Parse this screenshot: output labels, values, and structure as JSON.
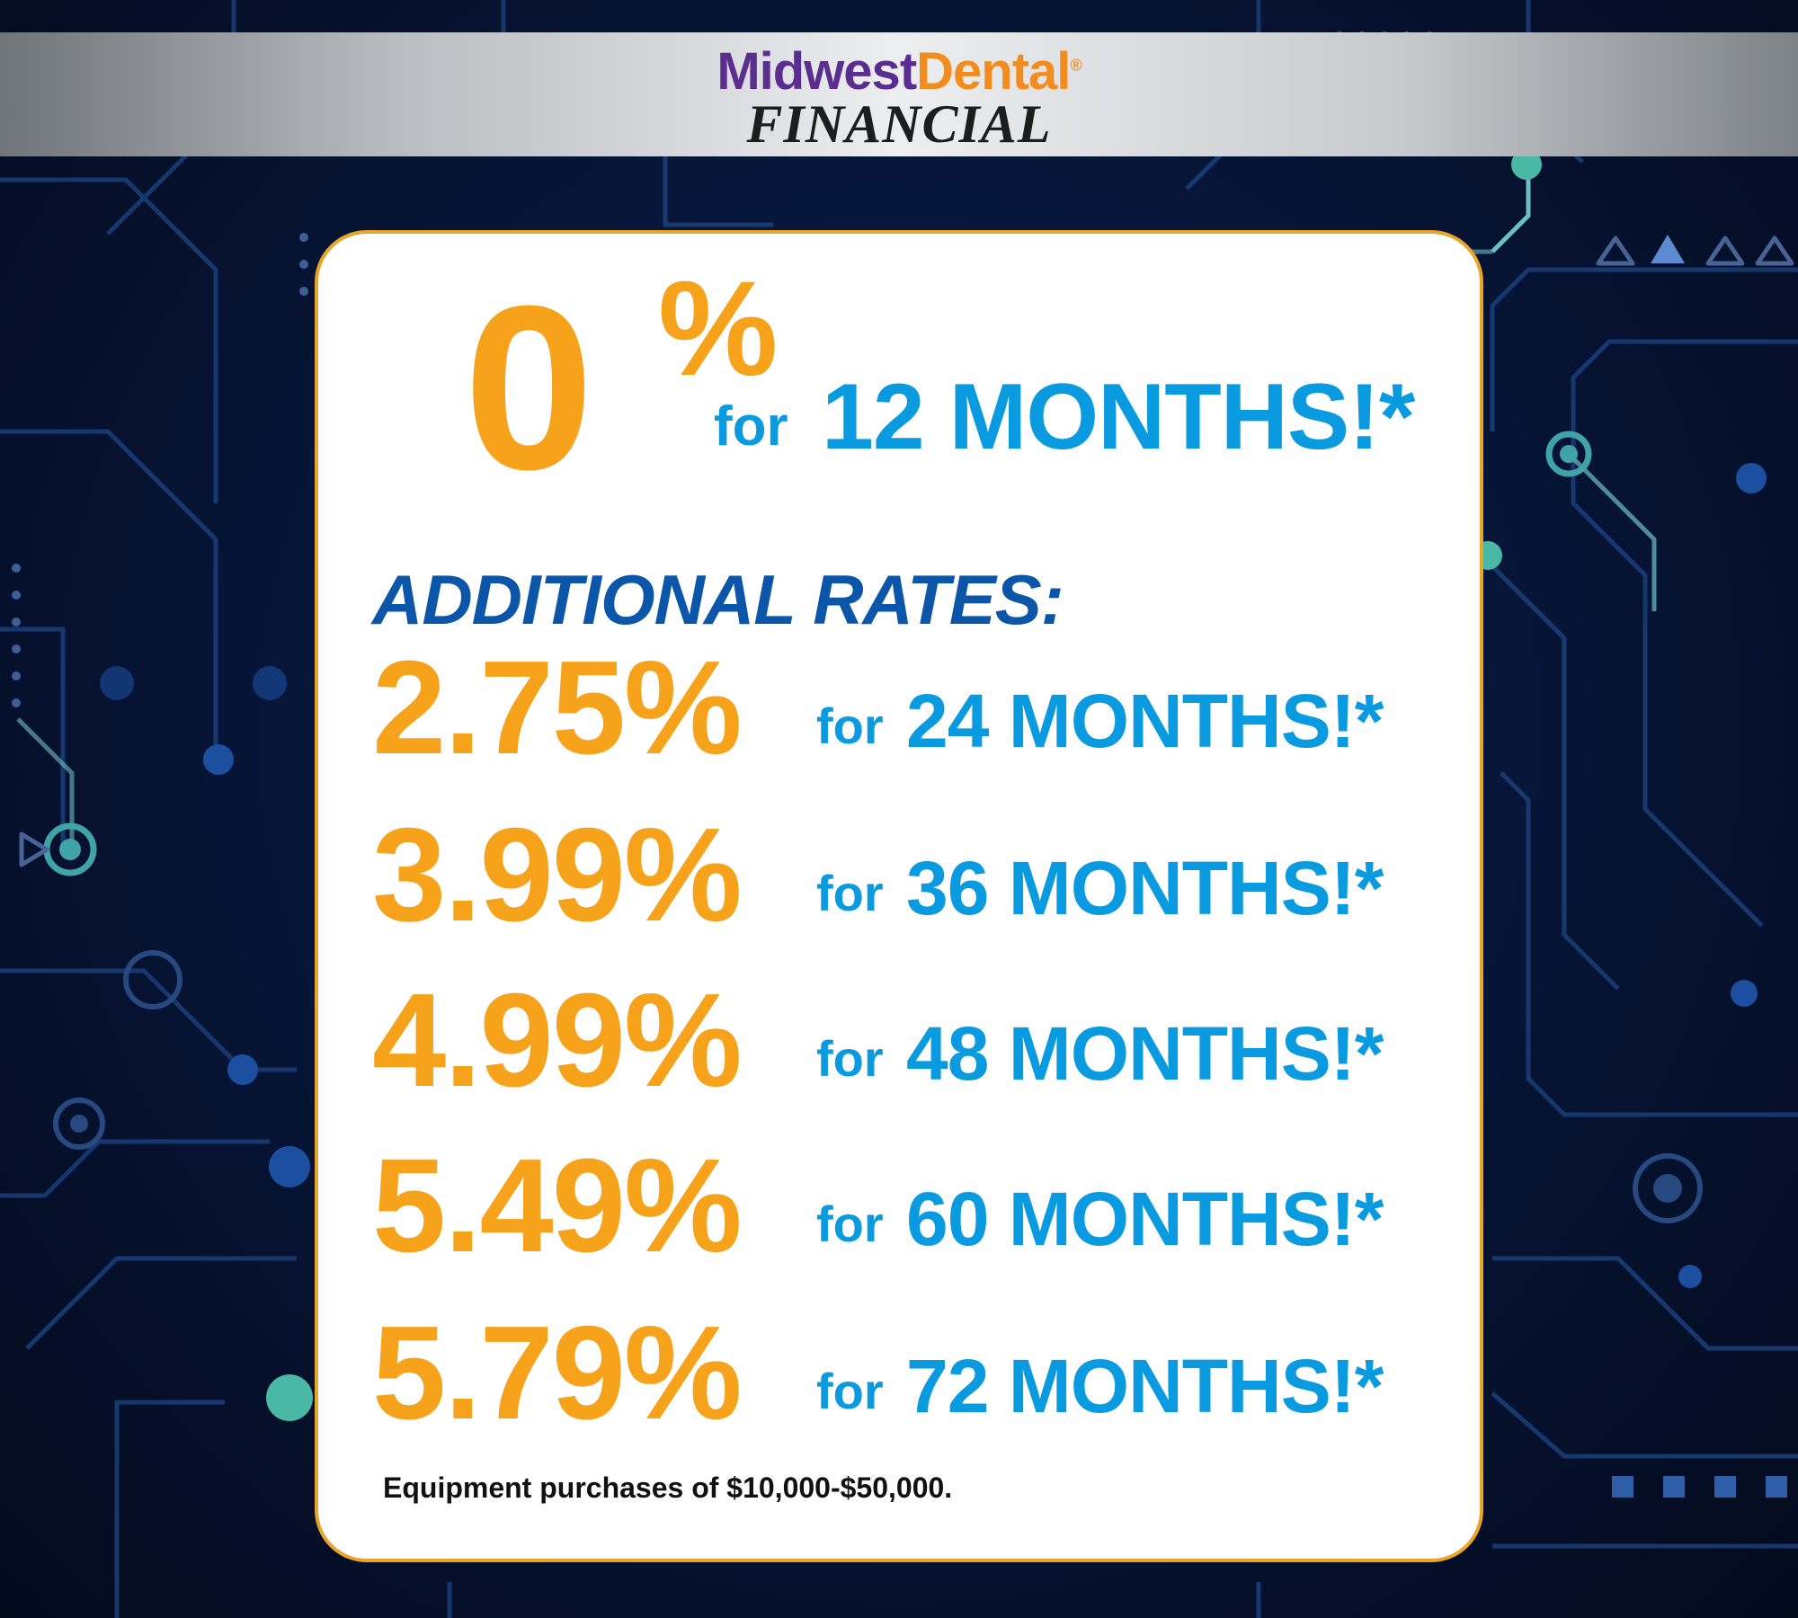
{
  "brand": {
    "name_part1": "Midwest",
    "name_part2": "Dental",
    "registered_mark": "®",
    "subtitle": "FINANCIAL",
    "colors": {
      "purple": "#5b2d8e",
      "orange": "#f28c1e"
    }
  },
  "promo": {
    "headline_rate": "0",
    "headline_percent": "%",
    "headline_for": "for",
    "headline_term": "12 MONTHS!*"
  },
  "additional": {
    "heading": "ADDITIONAL RATES:",
    "rates": [
      {
        "rate": "2.75%",
        "for": "for",
        "term": "24 MONTHS!*"
      },
      {
        "rate": "3.99%",
        "for": "for",
        "term": "36 MONTHS!*"
      },
      {
        "rate": "4.99%",
        "for": "for",
        "term": "48 MONTHS!*"
      },
      {
        "rate": "5.49%",
        "for": "for",
        "term": "60 MONTHS!*"
      },
      {
        "rate": "5.79%",
        "for": "for",
        "term": "72 MONTHS!*"
      }
    ]
  },
  "footnote": "Equipment purchases of $10,000-$50,000.",
  "colors": {
    "rate_orange": "#f7a21b",
    "term_blue": "#0a9ae0",
    "heading_blue": "#0b56a8",
    "card_border": "#e9a52a",
    "background": "#07163a"
  }
}
